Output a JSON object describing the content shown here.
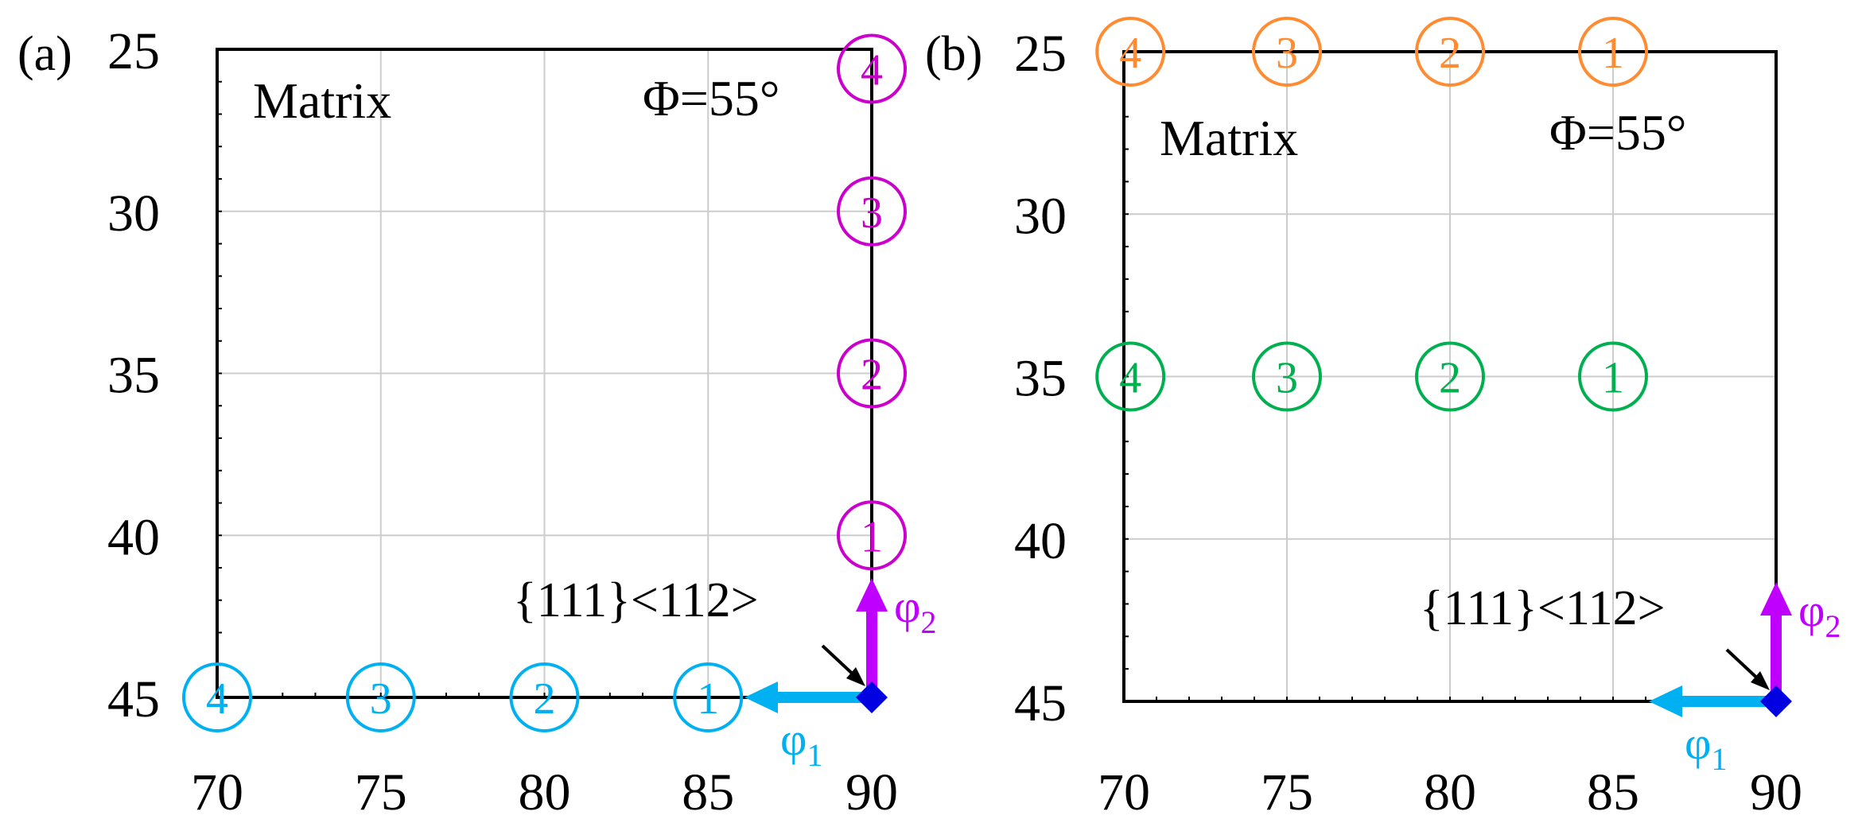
{
  "colors": {
    "axis": "#000000",
    "grid": "#cccccc",
    "phi1": "#00b0f0",
    "phi2": "#c000ff",
    "magenta": "#cc00cc",
    "orange": "#ff8c33",
    "green": "#00b050",
    "point": "#0000e0",
    "pointer": "#000000"
  },
  "chart_data": [
    {
      "type": "scatter",
      "panel_label": "(a)",
      "annotation_matrix": "Matrix",
      "annotation_phi": "Φ=55°",
      "annotation_texture": "{111}<112>",
      "arrow_labels": {
        "phi1": "φ",
        "phi1_sub": "1",
        "phi2": "φ",
        "phi2_sub": "2"
      },
      "xlim": [
        70,
        90
      ],
      "ylim": [
        45,
        25
      ],
      "x_ticks": [
        70,
        75,
        80,
        85,
        90
      ],
      "y_ticks": [
        25,
        30,
        35,
        40,
        45
      ],
      "grid": true,
      "origin_point": {
        "x": 90,
        "y": 45
      },
      "series": [
        {
          "color_key": "magenta",
          "points": [
            {
              "x": 90,
              "y": 40,
              "label": "1"
            },
            {
              "x": 90,
              "y": 35,
              "label": "2"
            },
            {
              "x": 90,
              "y": 30,
              "label": "3"
            },
            {
              "x": 90,
              "y": 25.6,
              "label": "4"
            }
          ]
        },
        {
          "color_key": "phi1",
          "points": [
            {
              "x": 85,
              "y": 45,
              "label": "1"
            },
            {
              "x": 80,
              "y": 45,
              "label": "2"
            },
            {
              "x": 75,
              "y": 45,
              "label": "3"
            },
            {
              "x": 70,
              "y": 45,
              "label": "4"
            }
          ]
        }
      ]
    },
    {
      "type": "scatter",
      "panel_label": "(b)",
      "annotation_matrix": "Matrix",
      "annotation_phi": "Φ=55°",
      "annotation_texture": "{111}<112>",
      "arrow_labels": {
        "phi1": "φ",
        "phi1_sub": "1",
        "phi2": "φ",
        "phi2_sub": "2"
      },
      "xlim": [
        70,
        90
      ],
      "ylim": [
        45,
        25
      ],
      "x_ticks": [
        70,
        75,
        80,
        85,
        90
      ],
      "y_ticks": [
        25,
        30,
        35,
        40,
        45
      ],
      "grid": true,
      "origin_point": {
        "x": 90,
        "y": 45
      },
      "series": [
        {
          "color_key": "orange",
          "points": [
            {
              "x": 85,
              "y": 25,
              "label": "1"
            },
            {
              "x": 80,
              "y": 25,
              "label": "2"
            },
            {
              "x": 75,
              "y": 25,
              "label": "3"
            },
            {
              "x": 70.2,
              "y": 25,
              "label": "4"
            }
          ]
        },
        {
          "color_key": "green",
          "points": [
            {
              "x": 85,
              "y": 35,
              "label": "1"
            },
            {
              "x": 80,
              "y": 35,
              "label": "2"
            },
            {
              "x": 75,
              "y": 35,
              "label": "3"
            },
            {
              "x": 70.2,
              "y": 35,
              "label": "4"
            }
          ]
        }
      ]
    }
  ]
}
